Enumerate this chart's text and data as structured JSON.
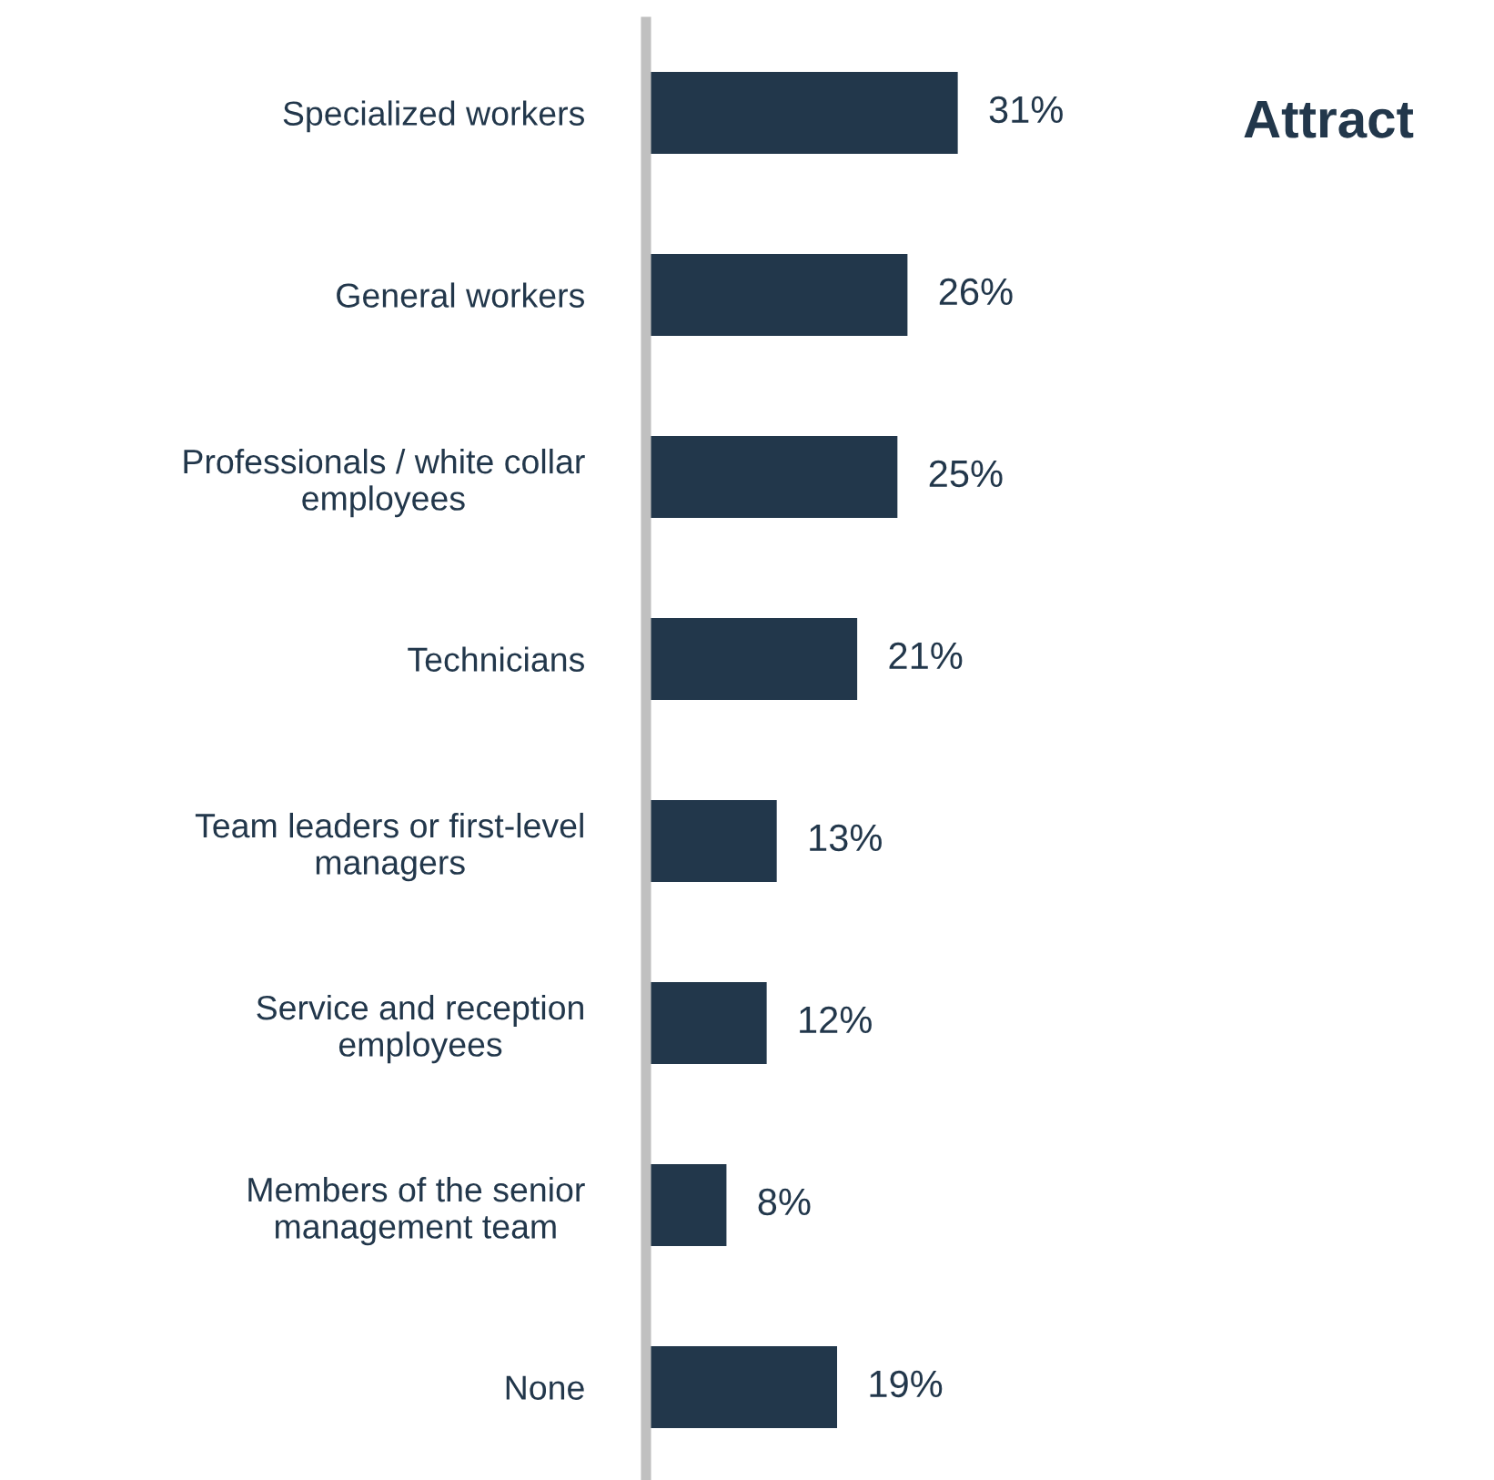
{
  "chart_data": {
    "type": "bar",
    "orientation": "horizontal",
    "title": "Attract",
    "categories": [
      "Specialized workers",
      "General workers",
      "Professionals / white collar\nemployees",
      "Technicians",
      "Team leaders or first-level\nmanagers",
      "Service and reception\nemployees",
      "Members of the senior\nmanagement team",
      "None"
    ],
    "values": [
      31,
      26,
      25,
      21,
      13,
      12,
      8,
      19
    ],
    "value_labels": [
      "31%",
      "26%",
      "25%",
      "21%",
      "13%",
      "12%",
      "8%",
      "19%"
    ],
    "color": "#22374b",
    "grid": false,
    "legend": false
  }
}
